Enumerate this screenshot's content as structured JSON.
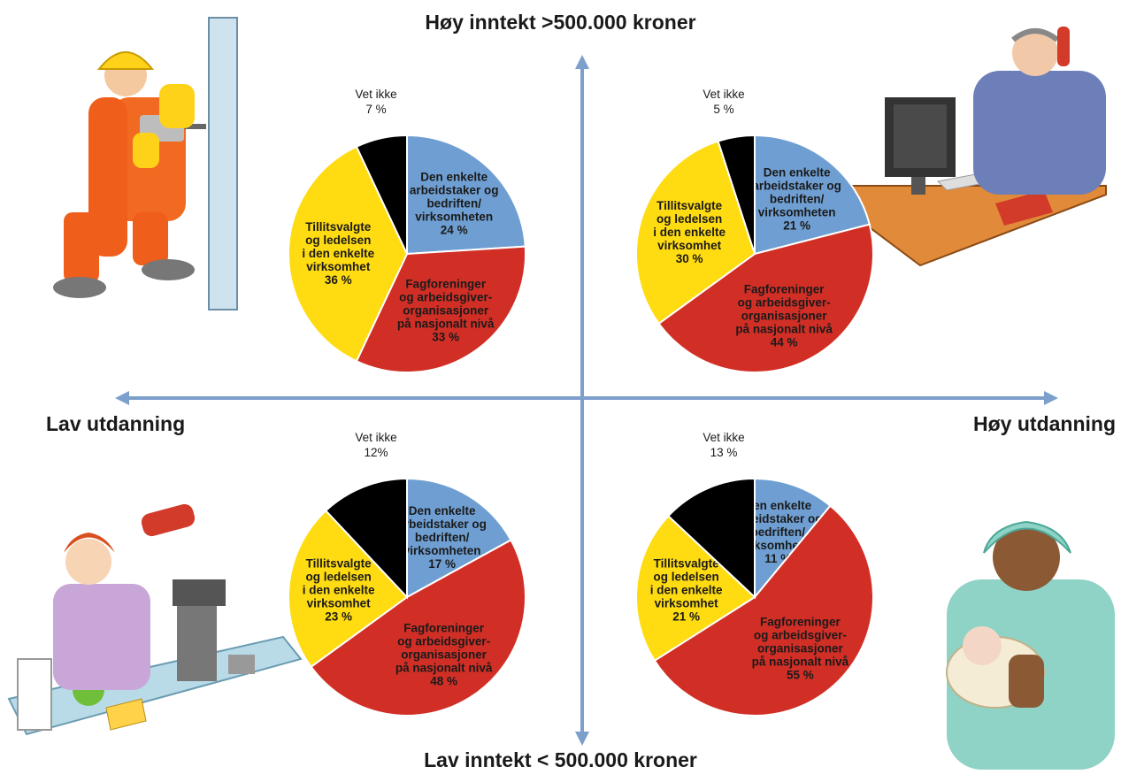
{
  "axes": {
    "top": "Høy inntekt >500.000 kroner",
    "bottom": "Lav inntekt < 500.000 kroner",
    "left": "Lav utdanning",
    "right": "Høy utdanning"
  },
  "colors": {
    "Den enkelte arbeidstaker og bedriften/virksomheten": "#6f9fd2",
    "Fagforeninger og arbeidsgiverorganisasjoner på nasjonalt nivå": "#d12f26",
    "Tillitsvalgte og ledelsen i den enkelte virksomhet": "#ffdb12",
    "Vet ikke": "#000000",
    "axis": "#7d9fcc"
  },
  "chart_data": [
    {
      "type": "pie",
      "quadrant": "Høy inntekt, Lav utdanning",
      "slices": [
        {
          "name": "Den enkelte arbeidstaker og bedriften/virksomheten",
          "label": [
            "Den enkelte",
            "arbeidstaker og",
            "bedriften/",
            "virksomheten",
            "24 %"
          ],
          "value": 24
        },
        {
          "name": "Fagforeninger og arbeidsgiverorganisasjoner på nasjonalt nivå",
          "label": [
            "Fagforeninger",
            "og arbeidsgiver-",
            "organisasjoner",
            "på nasjonalt nivå",
            "33 %"
          ],
          "value": 33
        },
        {
          "name": "Tillitsvalgte og ledelsen i den enkelte virksomhet",
          "label": [
            "Tillitsvalgte",
            "og ledelsen",
            "i den enkelte",
            "virksomhet",
            "36 %"
          ],
          "value": 36
        },
        {
          "name": "Vet ikke",
          "label": [
            "Vet ikke",
            "7 %"
          ],
          "value": 7
        }
      ]
    },
    {
      "type": "pie",
      "quadrant": "Høy inntekt, Høy utdanning",
      "slices": [
        {
          "name": "Den enkelte arbeidstaker og bedriften/virksomheten",
          "label": [
            "Den enkelte",
            "arbeidstaker og",
            "bedriften/",
            "virksomheten",
            "21 %"
          ],
          "value": 21
        },
        {
          "name": "Fagforeninger og arbeidsgiverorganisasjoner på nasjonalt nivå",
          "label": [
            "Fagforeninger",
            "og arbeidsgiver-",
            "organisasjoner",
            "på nasjonalt nivå",
            "44 %"
          ],
          "value": 44
        },
        {
          "name": "Tillitsvalgte og ledelsen i den enkelte virksomhet",
          "label": [
            "Tillitsvalgte",
            "og ledelsen",
            "i den enkelte",
            "virksomhet",
            "30 %"
          ],
          "value": 30
        },
        {
          "name": "Vet ikke",
          "label": [
            "Vet ikke",
            "5 %"
          ],
          "value": 5
        }
      ]
    },
    {
      "type": "pie",
      "quadrant": "Lav inntekt, Lav utdanning",
      "slices": [
        {
          "name": "Den enkelte arbeidstaker og bedriften/virksomheten",
          "label": [
            "Den enkelte",
            "arbeidstaker og",
            "bedriften/",
            "virksomheten",
            "17 %"
          ],
          "value": 17
        },
        {
          "name": "Fagforeninger og arbeidsgiverorganisasjoner på nasjonalt nivå",
          "label": [
            "Fagforeninger",
            "og arbeidsgiver-",
            "organisasjoner",
            "på nasjonalt nivå",
            "48 %"
          ],
          "value": 48
        },
        {
          "name": "Tillitsvalgte og ledelsen i den enkelte virksomhet",
          "label": [
            "Tillitsvalgte",
            "og ledelsen",
            "i den enkelte",
            "virksomhet",
            "23 %"
          ],
          "value": 23
        },
        {
          "name": "Vet ikke",
          "label": [
            "Vet ikke",
            "12%"
          ],
          "value": 12
        }
      ]
    },
    {
      "type": "pie",
      "quadrant": "Lav inntekt, Høy utdanning",
      "slices": [
        {
          "name": "Den enkelte arbeidstaker og bedriften/virksomheten",
          "label": [
            "Den enkelte",
            "arbeidstaker og",
            "bedriften/",
            "virksomheten",
            "11 %"
          ],
          "value": 11
        },
        {
          "name": "Fagforeninger og arbeidsgiverorganisasjoner på nasjonalt nivå",
          "label": [
            "Fagforeninger",
            "og arbeidsgiver-",
            "organisasjoner",
            "på nasjonalt nivå",
            "55 %"
          ],
          "value": 55
        },
        {
          "name": "Tillitsvalgte og ledelsen i den enkelte virksomhet",
          "label": [
            "Tillitsvalgte",
            "og ledelsen",
            "i den enkelte",
            "virksomhet",
            "21 %"
          ],
          "value": 21
        },
        {
          "name": "Vet ikke",
          "label": [
            "Vet ikke",
            "13 %"
          ],
          "value": 13
        }
      ]
    }
  ],
  "illustrations": {
    "top_left": "construction-worker-icon",
    "top_right": "office-worker-icon",
    "bottom_left": "cashier-icon",
    "bottom_right": "nurse-icon"
  }
}
